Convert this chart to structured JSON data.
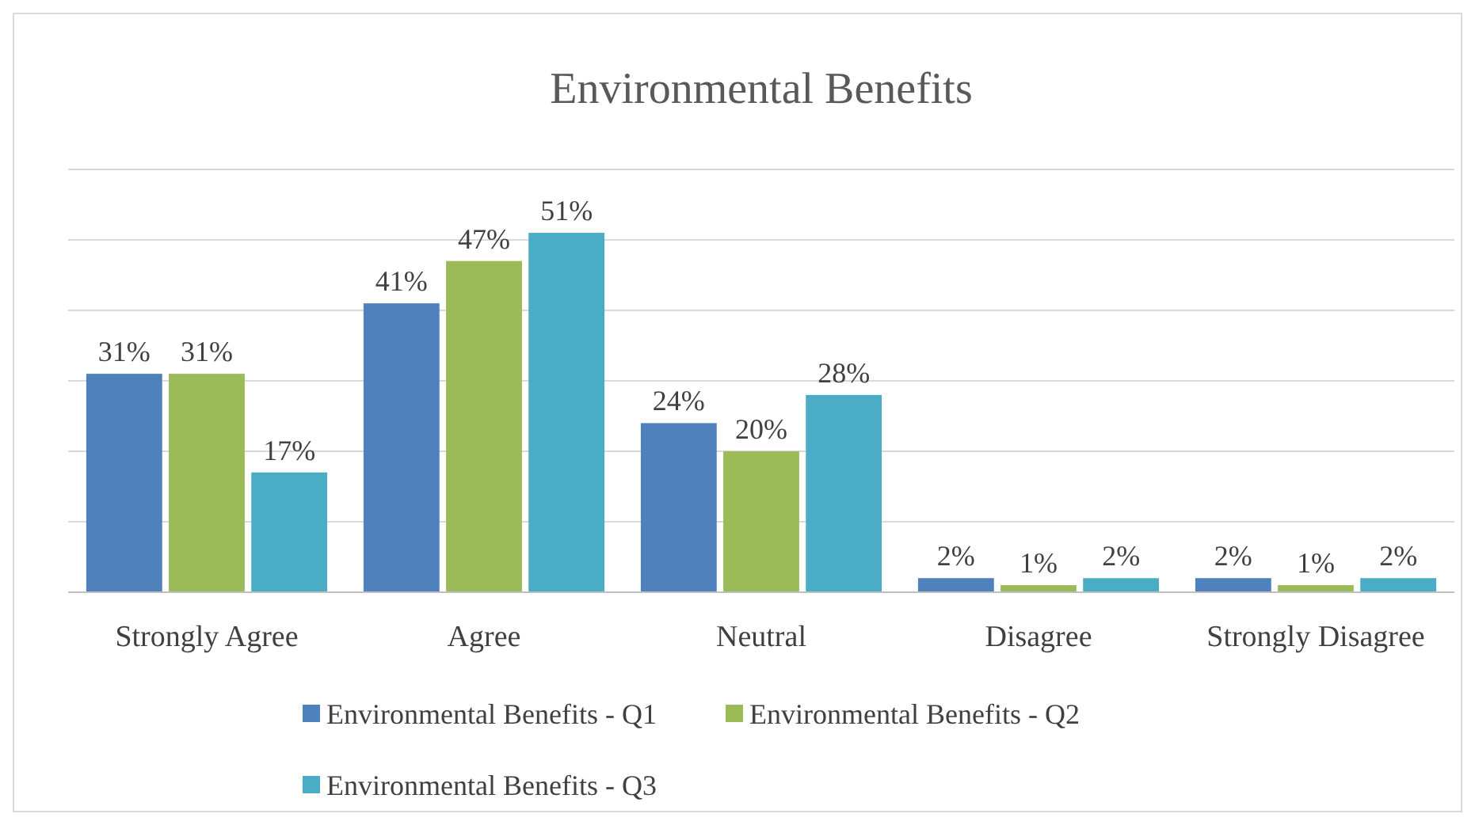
{
  "chart_data": {
    "type": "bar",
    "title": "Environmental Benefits",
    "categories": [
      "Strongly Agree",
      "Agree",
      "Neutral",
      "Disagree",
      "Strongly Disagree"
    ],
    "series": [
      {
        "name": "Environmental Benefits - Q1",
        "color": "#4f81bd",
        "values": [
          31,
          41,
          24,
          2,
          2
        ],
        "value_labels": [
          "31%",
          "41%",
          "24%",
          "2%",
          "2%"
        ]
      },
      {
        "name": "Environmental Benefits - Q2",
        "color": "#9bbb59",
        "values": [
          31,
          47,
          20,
          1,
          1
        ],
        "value_labels": [
          "31%",
          "47%",
          "20%",
          "1%",
          "1%"
        ]
      },
      {
        "name": "Environmental Benefits - Q3",
        "color": "#4bacc6",
        "values": [
          17,
          51,
          28,
          2,
          2
        ],
        "value_labels": [
          "17%",
          "51%",
          "28%",
          "2%",
          "2%"
        ]
      }
    ],
    "tick_labels": "x",
    "grid": "y",
    "legend": "bottom"
  }
}
